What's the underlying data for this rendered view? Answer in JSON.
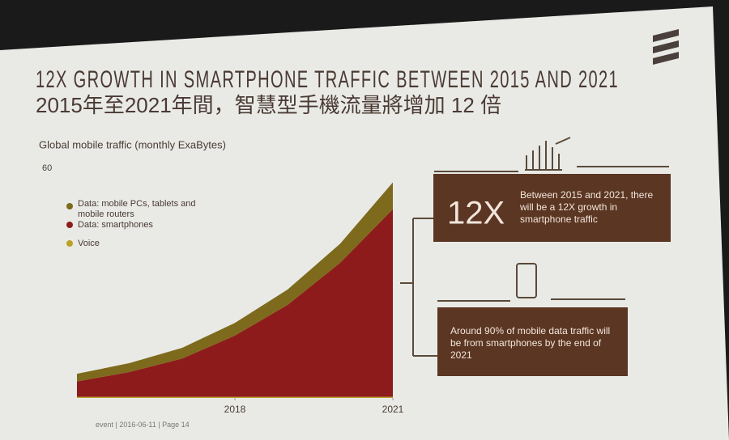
{
  "chart_data": {
    "type": "area",
    "title": "12X GROWTH IN SMARTPHONE TRAFFIC BETWEEN 2015 AND 2021",
    "subtitle": "2015年至2021年間，智慧型手機流量將增加 12 倍",
    "y_label": "Global mobile traffic (monthly ExaBytes)",
    "x": [
      2015,
      2016,
      2017,
      2018,
      2019,
      2020,
      2021
    ],
    "xlim": [
      2015,
      2021
    ],
    "xticks": [
      2018,
      2021
    ],
    "ylim": [
      0,
      60
    ],
    "yticks": [
      60
    ],
    "stacked": true,
    "legend": "upper left",
    "series": [
      {
        "name": "Data: mobile PCs, tablets and mobile routers",
        "color": "#7d6a1c",
        "values": [
          2,
          2.3,
          2.8,
          3.3,
          4,
          5,
          7
        ]
      },
      {
        "name": "Data: smartphones",
        "color": "#8e1b1b",
        "values": [
          4,
          6.5,
          10,
          16,
          24,
          35,
          49
        ]
      },
      {
        "name": "Voice",
        "color": "#b9a324",
        "values": [
          0.3,
          0.3,
          0.3,
          0.3,
          0.3,
          0.3,
          0.3
        ]
      }
    ],
    "annotations": [
      "12X",
      "Between 2015 and 2021, there will be a 12X growth in smartphone traffic",
      "Around 90% of mobile data traffic will be from smartphones by the end of 2021"
    ],
    "footer": "event | 2016-06-11 | Page 14"
  }
}
